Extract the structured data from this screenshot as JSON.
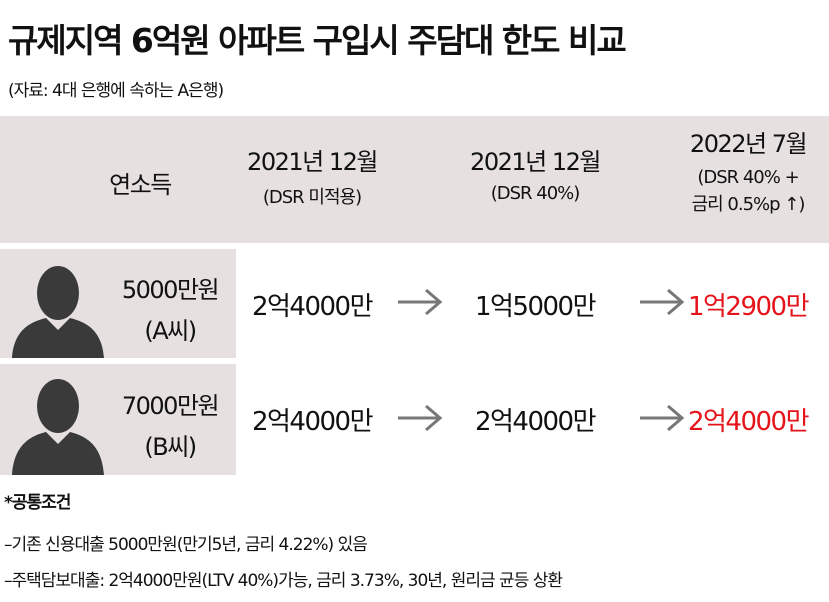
{
  "header": {
    "title": "규제지역 6억원 아파트 구입시 주담대 한도 비교",
    "source": "(자료: 4대 은행에 속하는 A은행)"
  },
  "table": {
    "columns": [
      {
        "label": "연소득"
      },
      {
        "label": "2021년 12월",
        "sub": [
          "(DSR 미적용)"
        ]
      },
      {
        "label": "2021년 12월",
        "sub": [
          "(DSR 40%)"
        ]
      },
      {
        "label": "2022년 7월",
        "sub": [
          "(DSR 40% +",
          "금리 0.5%p ↑)"
        ]
      }
    ],
    "rows": [
      {
        "income": "5000만원",
        "person": "(A씨)",
        "values": [
          "2억4000만",
          "1억5000만",
          "1억2900만"
        ]
      },
      {
        "income": "7000만원",
        "person": "(B씨)",
        "values": [
          "2억4000만",
          "2억4000만",
          "2억4000만"
        ]
      }
    ],
    "highlight_color": "#e5141b"
  },
  "notes": {
    "title": "*공통조건",
    "items": [
      "–기존 신용대출 5000만원(만기5년, 금리 4.22%) 있음",
      "–주택담보대출: 2억4000만원(LTV 40%)가능, 금리 3.73%, 30년, 원리금 균등 상환"
    ]
  }
}
